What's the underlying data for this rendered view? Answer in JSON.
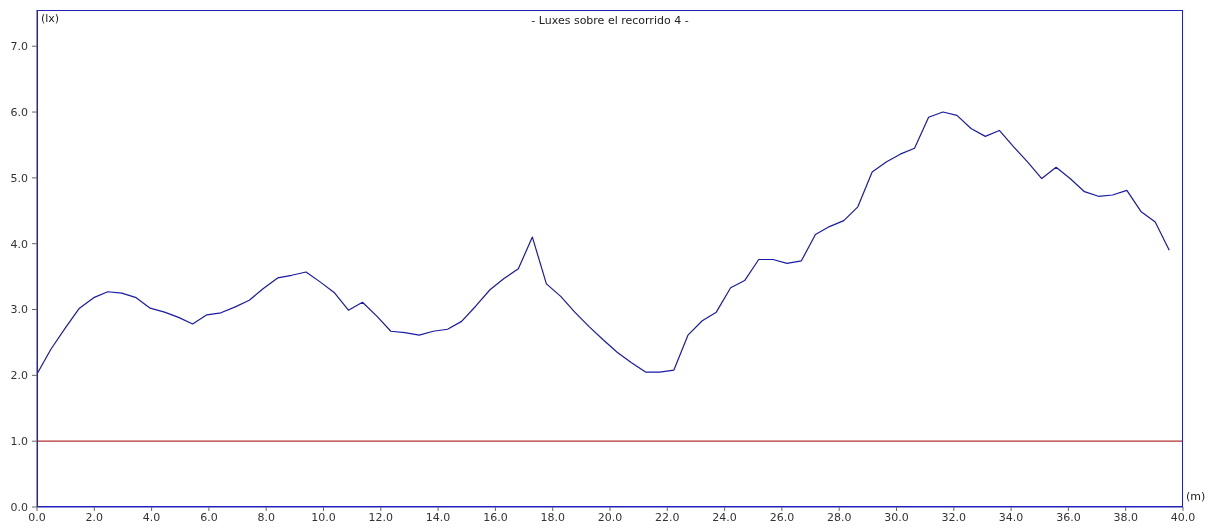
{
  "chart_data": {
    "type": "line",
    "title": "- Luxes sobre el recorrido 4 -",
    "xlabel": "(m)",
    "ylabel": "(lx)",
    "x": [
      0,
      0.49,
      0.99,
      1.48,
      1.98,
      2.47,
      2.96,
      3.46,
      3.95,
      4.45,
      4.94,
      5.43,
      5.93,
      6.42,
      6.92,
      7.41,
      7.9,
      8.4,
      8.89,
      9.39,
      9.88,
      10.37,
      10.87,
      11.36,
      11.86,
      12.35,
      12.84,
      13.34,
      13.83,
      14.33,
      14.82,
      15.31,
      15.81,
      16.3,
      16.8,
      17.29,
      17.78,
      18.28,
      18.77,
      19.27,
      19.76,
      20.25,
      20.75,
      21.24,
      21.74,
      22.23,
      22.72,
      23.22,
      23.71,
      24.21,
      24.7,
      25.19,
      25.69,
      26.18,
      26.68,
      27.17,
      27.66,
      28.16,
      28.65,
      29.15,
      29.64,
      30.13,
      30.63,
      31.12,
      31.62,
      32.11,
      32.6,
      33.1,
      33.59,
      34.09,
      34.58,
      35.07,
      35.57,
      36.06,
      36.56,
      37.05,
      37.54,
      38.04,
      38.53,
      39.03,
      39.52
    ],
    "series": [
      {
        "color": "#1a1aa8",
        "values": [
          2.02,
          2.4,
          2.72,
          3.02,
          3.18,
          3.27,
          3.25,
          3.18,
          3.02,
          2.96,
          2.88,
          2.78,
          2.92,
          2.95,
          3.04,
          3.14,
          3.32,
          3.48,
          3.52,
          3.57,
          3.42,
          3.26,
          2.99,
          3.11,
          2.9,
          2.67,
          2.65,
          2.61,
          2.67,
          2.7,
          2.82,
          3.05,
          3.3,
          3.47,
          3.62,
          4.1,
          3.39,
          3.2,
          2.96,
          2.74,
          2.54,
          2.35,
          2.19,
          2.05,
          2.05,
          2.08,
          2.61,
          2.83,
          2.96,
          3.33,
          3.44,
          3.76,
          3.76,
          3.7,
          3.74,
          4.14,
          4.26,
          4.35,
          4.56,
          5.09,
          5.24,
          5.36,
          5.45,
          5.92,
          6.0,
          5.95,
          5.75,
          5.63,
          5.72,
          5.47,
          5.24,
          4.99,
          5.16,
          4.99,
          4.79,
          4.72,
          4.74,
          4.81,
          4.49,
          4.33,
          3.9
        ]
      }
    ],
    "xlim": [
      0,
      40
    ],
    "ylim": [
      0,
      7.55
    ],
    "xticks": [
      {
        "value": 0,
        "label": "0.0"
      },
      {
        "value": 2,
        "label": "2.0"
      },
      {
        "value": 4,
        "label": "4.0"
      },
      {
        "value": 6,
        "label": "6.0"
      },
      {
        "value": 8,
        "label": "8.0"
      },
      {
        "value": 10,
        "label": "10.0"
      },
      {
        "value": 12,
        "label": "12.0"
      },
      {
        "value": 14,
        "label": "14.0"
      },
      {
        "value": 16,
        "label": "16.0"
      },
      {
        "value": 18,
        "label": "18.0"
      },
      {
        "value": 20,
        "label": "20.0"
      },
      {
        "value": 22,
        "label": "22.0"
      },
      {
        "value": 24,
        "label": "24.0"
      },
      {
        "value": 26,
        "label": "26.0"
      },
      {
        "value": 28,
        "label": "28.0"
      },
      {
        "value": 30,
        "label": "30.0"
      },
      {
        "value": 32,
        "label": "32.0"
      },
      {
        "value": 34,
        "label": "34.0"
      },
      {
        "value": 36,
        "label": "36.0"
      },
      {
        "value": 38,
        "label": "38.0"
      },
      {
        "value": 40,
        "label": "40.0"
      }
    ],
    "yticks": [
      {
        "value": 0,
        "label": "0.0"
      },
      {
        "value": 1,
        "label": "1.0"
      },
      {
        "value": 2,
        "label": "2.0"
      },
      {
        "value": 3,
        "label": "3.0"
      },
      {
        "value": 4,
        "label": "4.0"
      },
      {
        "value": 5,
        "label": "5.0"
      },
      {
        "value": 6,
        "label": "6.0"
      },
      {
        "value": 7,
        "label": "7.0"
      }
    ],
    "ref_lines": [
      {
        "axis": "y",
        "value": 1,
        "color": "#b03030"
      }
    ],
    "grid": false,
    "legend": false,
    "marker": "none",
    "line_style": "solid"
  }
}
